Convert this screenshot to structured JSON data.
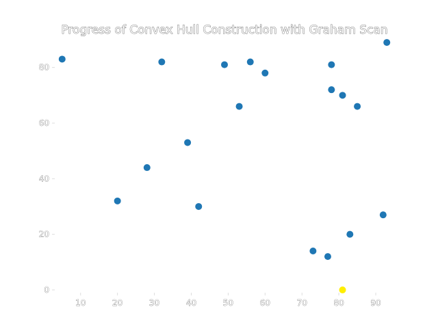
{
  "chart_data": {
    "type": "scatter",
    "title": "Progress of Convex Hull Construction with Graham Scan",
    "xlabel": "",
    "ylabel": "",
    "xlim": [
      3,
      95
    ],
    "ylim": [
      -1,
      90
    ],
    "xticks": [
      10,
      20,
      30,
      40,
      50,
      60,
      70,
      80,
      90
    ],
    "yticks": [
      0,
      20,
      40,
      60,
      80
    ],
    "grid": false,
    "series": [
      {
        "color": "#1f77b4",
        "points": [
          {
            "x": 5,
            "y": 83
          },
          {
            "x": 20,
            "y": 32
          },
          {
            "x": 28,
            "y": 44
          },
          {
            "x": 32,
            "y": 82
          },
          {
            "x": 39,
            "y": 53
          },
          {
            "x": 42,
            "y": 30
          },
          {
            "x": 49,
            "y": 81
          },
          {
            "x": 53,
            "y": 66
          },
          {
            "x": 56,
            "y": 82
          },
          {
            "x": 60,
            "y": 78
          },
          {
            "x": 73,
            "y": 14
          },
          {
            "x": 77,
            "y": 12
          },
          {
            "x": 78,
            "y": 81
          },
          {
            "x": 78,
            "y": 72
          },
          {
            "x": 81,
            "y": 70
          },
          {
            "x": 83,
            "y": 20
          },
          {
            "x": 85,
            "y": 66
          },
          {
            "x": 92,
            "y": 27
          },
          {
            "x": 93,
            "y": 89
          }
        ]
      },
      {
        "color": "#ffee00",
        "points": [
          {
            "x": 81,
            "y": 0
          }
        ]
      }
    ]
  }
}
